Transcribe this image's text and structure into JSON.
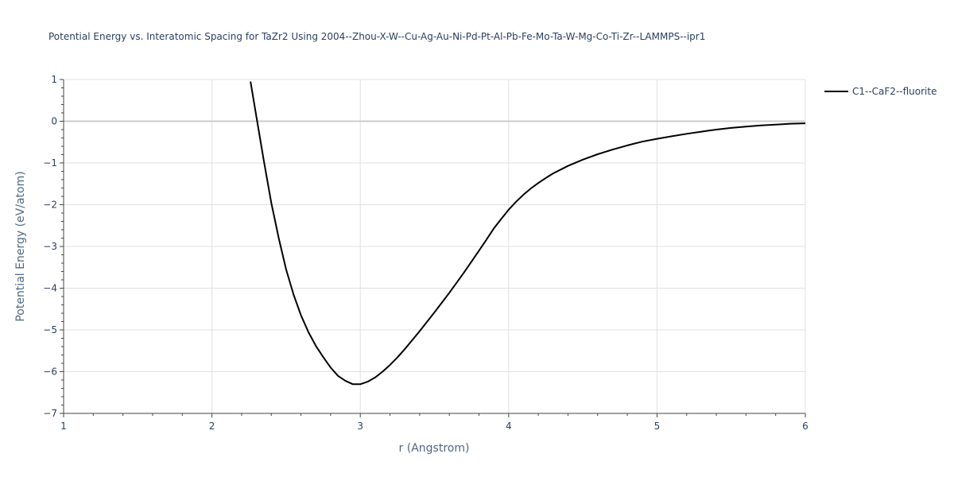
{
  "chart_data": {
    "type": "line",
    "title": "Potential Energy vs. Interatomic Spacing for TaZr2 Using 2004--Zhou-X-W--Cu-Ag-Au-Ni-Pd-Pt-Al-Pb-Fe-Mo-Ta-W-Mg-Co-Ti-Zr--LAMMPS--ipr1",
    "xlabel": "r (Angstrom)",
    "ylabel": "Potential Energy (eV/atom)",
    "xlim": [
      1,
      6
    ],
    "ylim": [
      -7,
      1
    ],
    "x_ticks": [
      "1",
      "2",
      "3",
      "4",
      "5",
      "6"
    ],
    "y_ticks": [
      "1",
      "0",
      "−1",
      "−2",
      "−3",
      "−4",
      "−5",
      "−6",
      "−7"
    ],
    "grid": true,
    "legend_position": "top-right",
    "series": [
      {
        "name": "C1--CaF2--fluorite",
        "color": "#000000",
        "x": [
          2.26,
          2.3,
          2.35,
          2.4,
          2.45,
          2.5,
          2.55,
          2.6,
          2.65,
          2.7,
          2.75,
          2.8,
          2.85,
          2.9,
          2.95,
          3.0,
          3.05,
          3.1,
          3.15,
          3.2,
          3.25,
          3.3,
          3.4,
          3.5,
          3.6,
          3.7,
          3.8,
          3.85,
          3.9,
          3.95,
          4.0,
          4.05,
          4.1,
          4.15,
          4.2,
          4.25,
          4.3,
          4.4,
          4.5,
          4.6,
          4.7,
          4.8,
          4.9,
          5.0,
          5.1,
          5.2,
          5.3,
          5.4,
          5.5,
          5.6,
          5.7,
          5.8,
          5.9,
          6.0
        ],
        "y": [
          0.95,
          0.1,
          -0.95,
          -1.95,
          -2.8,
          -3.55,
          -4.15,
          -4.65,
          -5.05,
          -5.38,
          -5.65,
          -5.9,
          -6.1,
          -6.22,
          -6.3,
          -6.3,
          -6.24,
          -6.14,
          -6.0,
          -5.84,
          -5.66,
          -5.46,
          -5.03,
          -4.58,
          -4.11,
          -3.62,
          -3.1,
          -2.84,
          -2.57,
          -2.34,
          -2.12,
          -1.93,
          -1.76,
          -1.61,
          -1.48,
          -1.36,
          -1.25,
          -1.07,
          -0.92,
          -0.79,
          -0.68,
          -0.58,
          -0.49,
          -0.42,
          -0.36,
          -0.3,
          -0.25,
          -0.2,
          -0.16,
          -0.13,
          -0.1,
          -0.08,
          -0.06,
          -0.05
        ]
      }
    ]
  }
}
